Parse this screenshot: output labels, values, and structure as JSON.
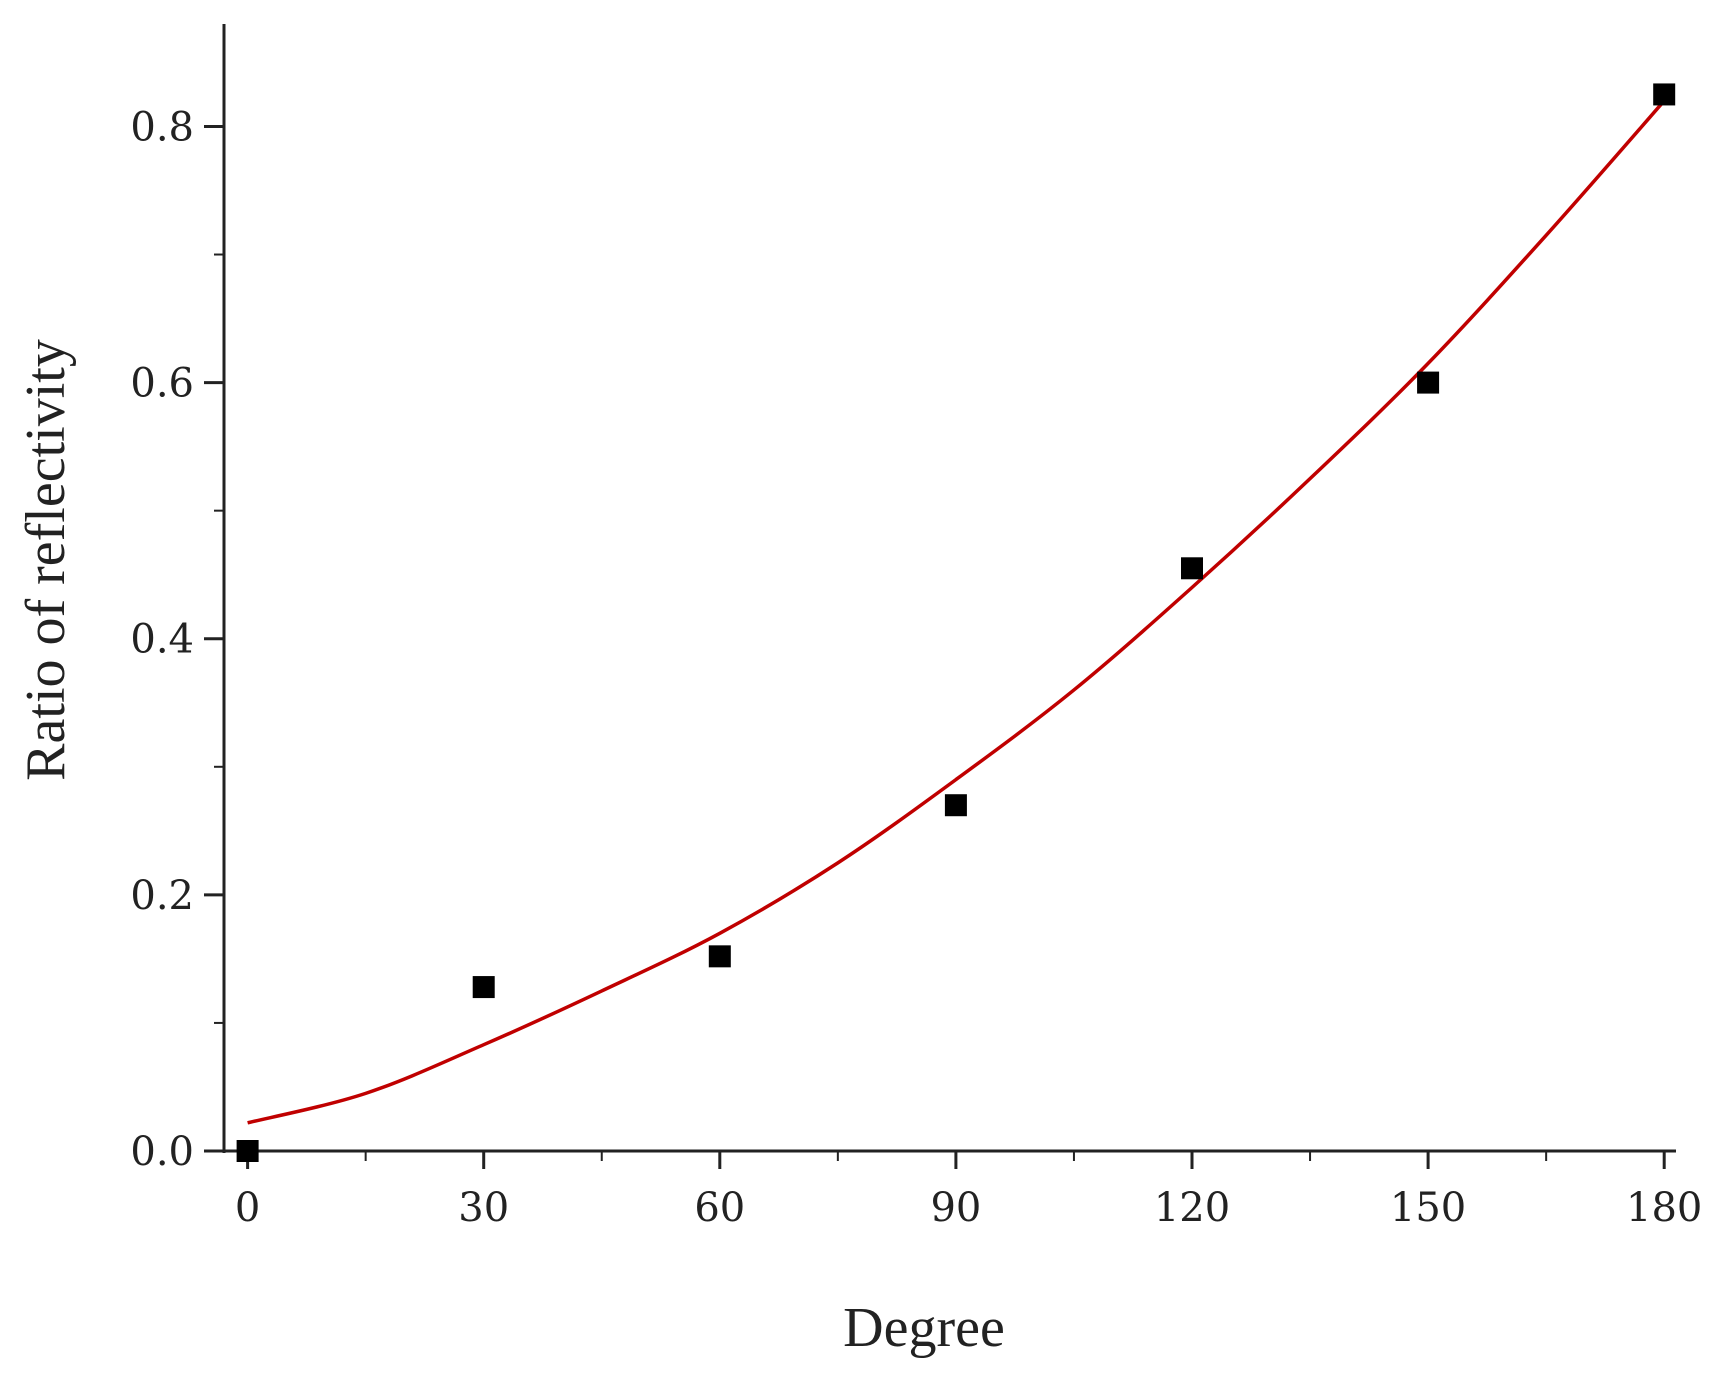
{
  "chart_data": {
    "type": "scatter",
    "xlabel": "Degree",
    "ylabel": "Ratio of reflectivity",
    "xlim": [
      -3,
      181.5
    ],
    "ylim": [
      0.0,
      0.88
    ],
    "x_ticks": [
      0,
      30,
      60,
      90,
      120,
      150,
      180
    ],
    "y_ticks": [
      0.0,
      0.2,
      0.4,
      0.6,
      0.8
    ],
    "x_tick_labels": [
      "0",
      "30",
      "60",
      "90",
      "120",
      "150",
      "180"
    ],
    "y_tick_labels": [
      "0.0",
      "0.2",
      "0.4",
      "0.6",
      "0.8"
    ],
    "grid": false,
    "series": [
      {
        "kind": "points",
        "marker": "square",
        "color": "#000000",
        "x": [
          0,
          30,
          60,
          90,
          120,
          150,
          180
        ],
        "y": [
          0.0,
          0.128,
          0.152,
          0.27,
          0.455,
          0.6,
          0.825
        ]
      },
      {
        "kind": "fit-line",
        "color": "#c00000",
        "x": [
          0,
          15,
          30,
          45,
          60,
          75,
          90,
          105,
          120,
          135,
          150,
          165,
          180
        ],
        "y": [
          0.022,
          0.045,
          0.083,
          0.125,
          0.17,
          0.225,
          0.29,
          0.36,
          0.44,
          0.525,
          0.615,
          0.715,
          0.82
        ]
      }
    ]
  }
}
